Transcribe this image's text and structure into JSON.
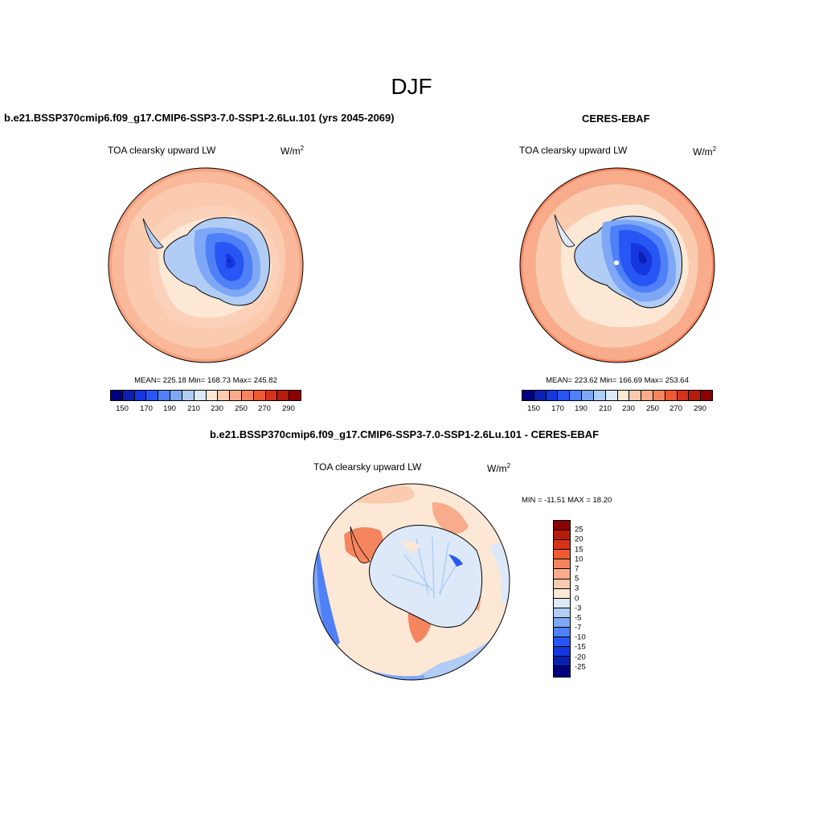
{
  "title": "DJF",
  "panels": {
    "model": {
      "title": "b.e21.BSSP370cmip6.f09_g17.CMIP6-SSP3-7.0-SSP1-2.6Lu.101 (yrs 2045-2069)",
      "variable": "TOA clearsky upward LW",
      "units_base": "W/m",
      "units_exp": "2",
      "stats": "MEAN= 225.18  Min= 168.73  Max= 245.82"
    },
    "obs": {
      "title": "CERES-EBAF",
      "variable": "TOA clearsky upward LW",
      "units_base": "W/m",
      "units_exp": "2",
      "stats": "MEAN= 223.62  Min= 166.69  Max= 253.64"
    },
    "diff": {
      "title": "b.e21.BSSP370cmip6.f09_g17.CMIP6-SSP3-7.0-SSP1-2.6Lu.101 - CERES-EBAF",
      "variable": "TOA clearsky upward LW",
      "units_base": "W/m",
      "units_exp": "2",
      "minmax": "MIN = -11.51 MAX =  18.20"
    }
  },
  "colorbar_abs": {
    "colors": [
      "#00007f",
      "#0b1fb3",
      "#1537e0",
      "#2756f5",
      "#4f80f7",
      "#7ea7f5",
      "#b1cdf5",
      "#dde9f9",
      "#fde8d6",
      "#fbcbb0",
      "#f8ac8c",
      "#f5855f",
      "#ee5a34",
      "#d8321a",
      "#b81a0c",
      "#8b0000"
    ],
    "ticks": [
      "150",
      "170",
      "190",
      "210",
      "230",
      "250",
      "270",
      "290"
    ]
  },
  "colorbar_diff": {
    "colors": [
      "#8b0000",
      "#b81a0c",
      "#d8321a",
      "#ee5a34",
      "#f5855f",
      "#f8ac8c",
      "#fbcbb0",
      "#fde8d6",
      "#dde9f9",
      "#b1cdf5",
      "#7ea7f5",
      "#4f80f7",
      "#2756f5",
      "#1537e0",
      "#0b1fb3",
      "#00007f"
    ],
    "ticks": [
      "25",
      "20",
      "15",
      "10",
      "7",
      "5",
      "3",
      "0",
      "-3",
      "-5",
      "-7",
      "-10",
      "-15",
      "-20",
      "-25"
    ]
  }
}
